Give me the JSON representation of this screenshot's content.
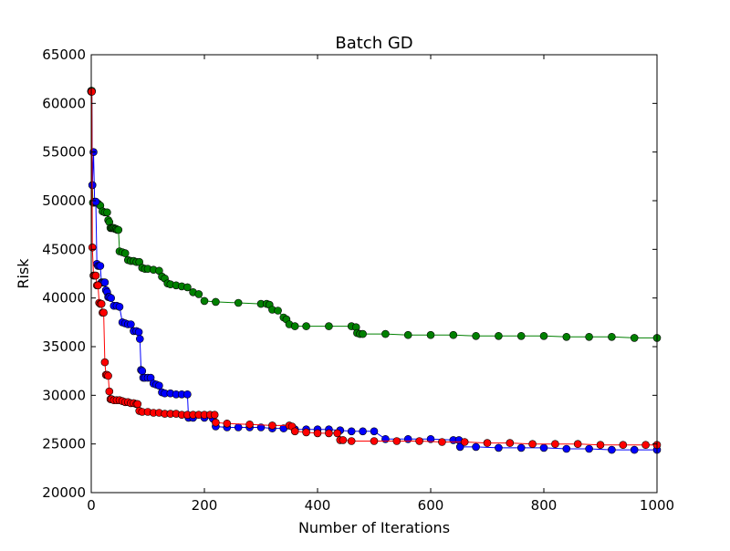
{
  "chart_data": {
    "type": "line",
    "title": "Batch GD",
    "xlabel": "Number of Iterations",
    "ylabel": "Risk",
    "xlim": [
      0,
      1000
    ],
    "ylim": [
      20000,
      65000
    ],
    "xticks": [
      0,
      200,
      400,
      600,
      800,
      1000
    ],
    "yticks": [
      20000,
      25000,
      30000,
      35000,
      40000,
      45000,
      50000,
      55000,
      60000,
      65000
    ],
    "grid": false,
    "legend": "none",
    "markers": "circle",
    "series": [
      {
        "color": "#008000",
        "x": [
          0,
          1,
          2,
          3,
          5,
          8,
          12,
          16,
          20,
          24,
          28,
          30,
          32,
          34,
          36,
          38,
          40,
          42,
          44,
          46,
          48,
          50,
          55,
          60,
          65,
          70,
          75,
          80,
          85,
          90,
          95,
          100,
          110,
          120,
          125,
          130,
          135,
          140,
          150,
          160,
          170,
          180,
          190,
          200,
          220,
          260,
          300,
          310,
          315,
          320,
          330,
          340,
          345,
          350,
          360,
          380,
          420,
          460,
          468,
          470,
          475,
          480,
          520,
          560,
          600,
          640,
          680,
          720,
          760,
          800,
          840,
          880,
          920,
          960,
          1000
        ],
        "y": [
          61300,
          61300,
          51600,
          49800,
          49800,
          49800,
          49700,
          49500,
          48900,
          48800,
          48800,
          48000,
          47800,
          47200,
          47200,
          47200,
          47200,
          47100,
          47100,
          47000,
          47000,
          44800,
          44700,
          44600,
          43900,
          43800,
          43800,
          43700,
          43700,
          43100,
          43000,
          43000,
          42900,
          42800,
          42200,
          42000,
          41500,
          41400,
          41300,
          41200,
          41100,
          40600,
          40400,
          39700,
          39600,
          39500,
          39400,
          39400,
          39300,
          38800,
          38700,
          38000,
          37800,
          37300,
          37100,
          37100,
          37100,
          37100,
          37000,
          36400,
          36300,
          36300,
          36300,
          36200,
          36200,
          36200,
          36100,
          36100,
          36100,
          36100,
          36000,
          36000,
          36000,
          35900,
          35900
        ]
      },
      {
        "color": "#0000ff",
        "x": [
          0,
          1,
          2,
          4,
          6,
          8,
          10,
          12,
          14,
          16,
          18,
          20,
          22,
          24,
          26,
          28,
          30,
          32,
          35,
          40,
          45,
          50,
          55,
          60,
          65,
          70,
          75,
          80,
          84,
          86,
          88,
          90,
          92,
          95,
          100,
          105,
          110,
          115,
          120,
          125,
          130,
          140,
          150,
          160,
          170,
          172,
          180,
          200,
          215,
          220,
          240,
          260,
          280,
          300,
          320,
          340,
          360,
          380,
          400,
          420,
          440,
          460,
          480,
          500,
          520,
          560,
          600,
          640,
          650,
          652,
          680,
          720,
          760,
          800,
          840,
          880,
          920,
          960,
          1000
        ],
        "y": [
          61200,
          61200,
          51600,
          55000,
          49900,
          49900,
          43500,
          43300,
          43300,
          43300,
          41600,
          41600,
          41600,
          41600,
          40800,
          40600,
          40100,
          40100,
          40000,
          39200,
          39200,
          39100,
          37500,
          37400,
          37300,
          37300,
          36600,
          36600,
          36500,
          35800,
          32600,
          32500,
          31800,
          31800,
          31800,
          31800,
          31200,
          31100,
          31000,
          30300,
          30200,
          30200,
          30100,
          30100,
          30100,
          27700,
          27700,
          27700,
          27600,
          26800,
          26700,
          26700,
          26700,
          26700,
          26600,
          26600,
          26500,
          26500,
          26500,
          26500,
          26400,
          26300,
          26300,
          26300,
          25500,
          25500,
          25500,
          25400,
          25400,
          24700,
          24700,
          24600,
          24600,
          24600,
          24500,
          24500,
          24400,
          24400,
          24400
        ]
      },
      {
        "color": "#ff0000",
        "x": [
          0,
          1,
          2,
          4,
          6,
          8,
          10,
          12,
          14,
          16,
          18,
          20,
          22,
          24,
          26,
          28,
          30,
          32,
          34,
          36,
          40,
          45,
          50,
          55,
          60,
          65,
          70,
          75,
          80,
          82,
          85,
          90,
          100,
          110,
          120,
          130,
          140,
          150,
          160,
          170,
          180,
          190,
          200,
          210,
          218,
          220,
          240,
          280,
          320,
          350,
          355,
          360,
          380,
          400,
          420,
          435,
          440,
          445,
          460,
          500,
          540,
          580,
          620,
          660,
          700,
          740,
          780,
          820,
          860,
          900,
          940,
          980,
          1000
        ],
        "y": [
          61200,
          61200,
          45200,
          42300,
          42300,
          42300,
          41300,
          41300,
          39500,
          39400,
          39400,
          38500,
          38500,
          33400,
          32100,
          32100,
          32000,
          30400,
          29600,
          29600,
          29500,
          29500,
          29500,
          29400,
          29300,
          29300,
          29200,
          29200,
          29100,
          29100,
          28400,
          28300,
          28300,
          28200,
          28200,
          28100,
          28100,
          28100,
          28000,
          28000,
          28000,
          28000,
          28000,
          28000,
          28000,
          27200,
          27100,
          27000,
          26900,
          26900,
          26800,
          26300,
          26200,
          26100,
          26100,
          26100,
          25400,
          25400,
          25300,
          25300,
          25300,
          25300,
          25200,
          25200,
          25100,
          25100,
          25000,
          25000,
          25000,
          24900,
          24900,
          24900,
          24900
        ]
      }
    ]
  }
}
